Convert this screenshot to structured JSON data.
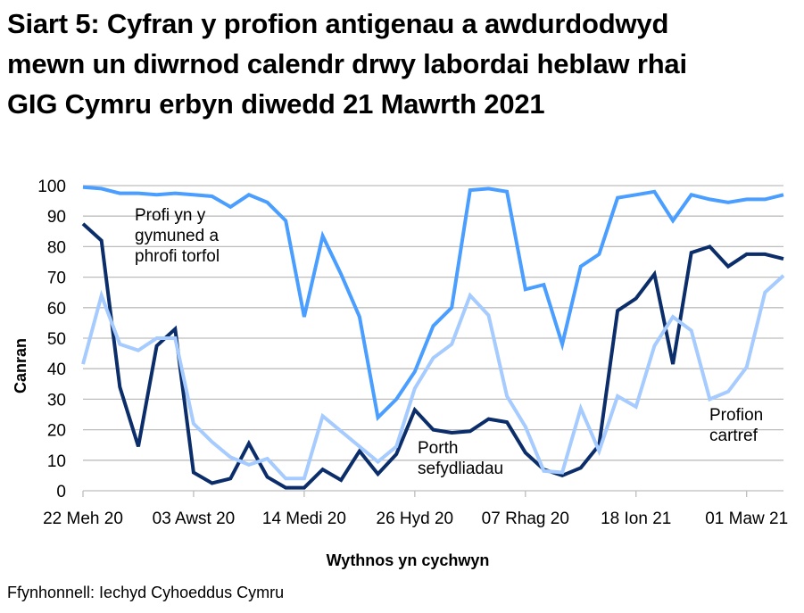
{
  "title_lines": [
    "Siart 5: Cyfran y profion antigenau a awdurdodwyd",
    "mewn un diwrnod calendr drwy labordai heblaw rhai",
    "GIG Cymru erbyn diwedd 21 Mawrth 2021"
  ],
  "source": "Ffynhonnell: Iechyd Cyhoeddus Cymru",
  "chart_data": {
    "type": "line",
    "title": "Siart 5: Cyfran y profion antigenau a awdurdodwyd mewn un diwrnod calendr drwy labordai heblaw rhai GIG Cymru erbyn diwedd 21 Mawrth 2021",
    "xlabel": "Wythnos yn cychwyn",
    "ylabel": "Canran",
    "ylim": [
      0,
      100
    ],
    "yticks": [
      0,
      10,
      20,
      30,
      40,
      50,
      60,
      70,
      80,
      90,
      100
    ],
    "grid": true,
    "legend": "inline labels",
    "x_tick_labels": [
      {
        "index": 0,
        "label": "22 Meh 20"
      },
      {
        "index": 6,
        "label": "03 Awst 20"
      },
      {
        "index": 12,
        "label": "14 Medi 20"
      },
      {
        "index": 18,
        "label": "26 Hyd 20"
      },
      {
        "index": 24,
        "label": "07 Rhag 20"
      },
      {
        "index": 30,
        "label": "18 Ion 21"
      },
      {
        "index": 36,
        "label": "01 Maw 21"
      }
    ],
    "n_points": 39,
    "series": [
      {
        "name": "Profi yn y gymuned a phrofi torfol",
        "label_lines": [
          "Profi yn y",
          "gymuned a",
          "phrofi torfol"
        ],
        "color": "#4a9eff",
        "values": [
          99.5,
          99,
          97.5,
          97.5,
          97,
          97.5,
          97,
          96.5,
          93,
          97,
          94.5,
          88.5,
          57,
          83.5,
          71,
          57,
          24,
          30,
          39,
          54,
          60,
          98.5,
          99,
          98,
          66,
          67.5,
          48,
          73.5,
          77.5,
          96,
          97,
          98,
          88.5,
          97,
          95.5,
          94.5,
          95.5,
          95.5,
          97
        ]
      },
      {
        "name": "Porth sefydliadau",
        "label_lines": [
          "Porth",
          "sefydliadau"
        ],
        "color": "#0b2e6b",
        "values": [
          87.5,
          82,
          34,
          14.5,
          47.5,
          53,
          6,
          2.5,
          4,
          15.5,
          4.5,
          1,
          1,
          7,
          3.5,
          13,
          5.5,
          12,
          26.5,
          20,
          19,
          19.5,
          23.5,
          22.5,
          12.5,
          7,
          5,
          7.5,
          15,
          59,
          63,
          71,
          41.5,
          78,
          80,
          73.5,
          77.5,
          77.5,
          76
        ]
      },
      {
        "name": "Profion cartref",
        "label_lines": [
          "Profion",
          "cartref"
        ],
        "color": "#a6cbff",
        "values": [
          41.5,
          64,
          48,
          46,
          50,
          50,
          22,
          16,
          11,
          8.5,
          10.5,
          4,
          4,
          24.5,
          19.5,
          14.5,
          9.5,
          14.5,
          33.5,
          43.5,
          48,
          64,
          57.5,
          31,
          21,
          6.5,
          6,
          27,
          13,
          31,
          27.5,
          47.5,
          57,
          52.5,
          30,
          32.5,
          40.5,
          65,
          70.5
        ]
      }
    ]
  }
}
